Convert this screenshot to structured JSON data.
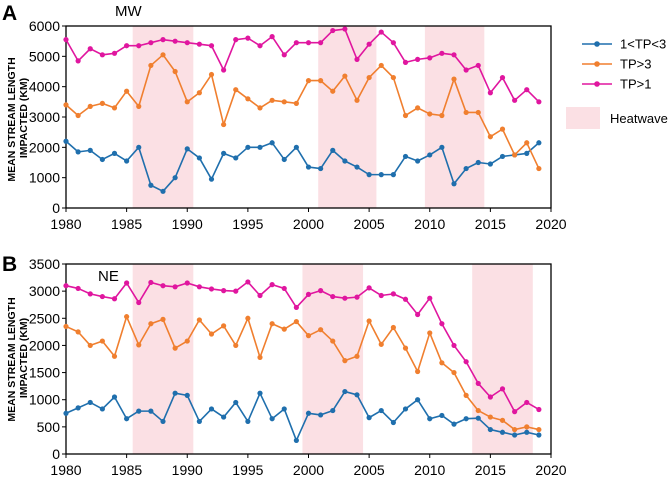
{
  "chart_data": [
    {
      "panel": "A",
      "title": "MW",
      "type": "line",
      "xlabel": "",
      "ylabel": "MEAN STREAM LENGTH IMPACTED (KM)",
      "xlim": [
        1980,
        2020
      ],
      "ylim": [
        0,
        6000
      ],
      "xticks": [
        "1980",
        "1985",
        "1990",
        "1995",
        "2000",
        "2005",
        "2010",
        "2015",
        "2020"
      ],
      "yticks": [
        "0",
        "1000",
        "2000",
        "3000",
        "4000",
        "5000",
        "6000"
      ],
      "heatwaves": [
        [
          1985.5,
          1990.5
        ],
        [
          2000.8,
          2005.6
        ],
        [
          2009.6,
          2014.5
        ]
      ],
      "x": [
        1980,
        1981,
        1982,
        1983,
        1984,
        1985,
        1986,
        1987,
        1988,
        1989,
        1990,
        1991,
        1992,
        1993,
        1994,
        1995,
        1996,
        1997,
        1998,
        1999,
        2000,
        2001,
        2002,
        2003,
        2004,
        2005,
        2006,
        2007,
        2008,
        2009,
        2010,
        2011,
        2012,
        2013,
        2014,
        2015,
        2016,
        2017,
        2018,
        2019
      ],
      "series": [
        {
          "name": "1<TP<3",
          "color": "#1f6fad",
          "values": [
            2200,
            1850,
            1900,
            1600,
            1800,
            1550,
            2000,
            750,
            550,
            1000,
            1950,
            1650,
            950,
            1800,
            1650,
            2000,
            2000,
            2150,
            1600,
            2000,
            1350,
            1300,
            1900,
            1550,
            1350,
            1100,
            1100,
            1100,
            1700,
            1550,
            1750,
            2000,
            800,
            1300,
            1500,
            1450,
            1700,
            1750,
            1800,
            2150
          ]
        },
        {
          "name": "TP>3",
          "color": "#f07f2f",
          "values": [
            3400,
            3050,
            3350,
            3450,
            3300,
            3850,
            3350,
            4700,
            5050,
            4500,
            3500,
            3800,
            4400,
            2750,
            3900,
            3600,
            3300,
            3550,
            3500,
            3450,
            4200,
            4200,
            3850,
            4350,
            3550,
            4300,
            4700,
            4300,
            3050,
            3300,
            3100,
            3050,
            4250,
            3150,
            3150,
            2350,
            2600,
            1750,
            2150,
            1300
          ]
        },
        {
          "name": "TP>1",
          "color": "#e0169f",
          "values": [
            5550,
            4850,
            5250,
            5050,
            5100,
            5350,
            5350,
            5450,
            5550,
            5500,
            5450,
            5400,
            5350,
            4550,
            5550,
            5600,
            5350,
            5650,
            5050,
            5450,
            5450,
            5450,
            5850,
            5900,
            4900,
            5400,
            5800,
            5450,
            4800,
            4900,
            4950,
            5100,
            5050,
            4550,
            4700,
            3800,
            4300,
            3550,
            3900,
            3500
          ]
        }
      ]
    },
    {
      "panel": "B",
      "title": "NE",
      "type": "line",
      "xlabel": "",
      "ylabel": "MEAN STREAM LENGTH IMPACTED (KM)",
      "xlim": [
        1980,
        2020
      ],
      "ylim": [
        0,
        3500
      ],
      "xticks": [
        "1980",
        "1985",
        "1990",
        "1995",
        "2000",
        "2005",
        "2010",
        "2015",
        "2020"
      ],
      "yticks": [
        "0",
        "500",
        "1000",
        "1500",
        "2000",
        "2500",
        "3000",
        "3500"
      ],
      "heatwaves": [
        [
          1985.5,
          1990.5
        ],
        [
          1999.5,
          2004.5
        ],
        [
          2013.5,
          2018.5
        ]
      ],
      "x": [
        1980,
        1981,
        1982,
        1983,
        1984,
        1985,
        1986,
        1987,
        1988,
        1989,
        1990,
        1991,
        1992,
        1993,
        1994,
        1995,
        1996,
        1997,
        1998,
        1999,
        2000,
        2001,
        2002,
        2003,
        2004,
        2005,
        2006,
        2007,
        2008,
        2009,
        2010,
        2011,
        2012,
        2013,
        2014,
        2015,
        2016,
        2017,
        2018,
        2019
      ],
      "series": [
        {
          "name": "1<TP<3",
          "color": "#1f6fad",
          "values": [
            750,
            850,
            950,
            830,
            1050,
            650,
            790,
            790,
            600,
            1120,
            1080,
            600,
            830,
            680,
            950,
            600,
            1120,
            650,
            830,
            250,
            750,
            720,
            800,
            1150,
            1090,
            670,
            800,
            580,
            830,
            1000,
            650,
            710,
            550,
            650,
            660,
            450,
            400,
            350,
            400,
            350
          ]
        },
        {
          "name": "TP>3",
          "color": "#f07f2f",
          "values": [
            2350,
            2250,
            2000,
            2080,
            1800,
            2530,
            2010,
            2400,
            2480,
            1950,
            2080,
            2470,
            2210,
            2360,
            2000,
            2500,
            1780,
            2400,
            2300,
            2440,
            2180,
            2290,
            2080,
            1720,
            1800,
            2450,
            2020,
            2330,
            1950,
            1520,
            2230,
            1680,
            1500,
            1080,
            800,
            680,
            620,
            450,
            500,
            450
          ]
        },
        {
          "name": "TP>1",
          "color": "#e0169f",
          "values": [
            3100,
            3050,
            2950,
            2900,
            2860,
            3150,
            2790,
            3160,
            3100,
            3080,
            3150,
            3080,
            3040,
            3010,
            3000,
            3170,
            2920,
            3120,
            3050,
            2700,
            2940,
            3010,
            2900,
            2870,
            2890,
            3060,
            2920,
            2950,
            2850,
            2570,
            2870,
            2400,
            2000,
            1700,
            1300,
            1050,
            1200,
            780,
            950,
            820
          ]
        }
      ]
    }
  ],
  "legend": {
    "items": [
      {
        "label": "1<TP<3",
        "color": "#1f6fad"
      },
      {
        "label": "TP>3",
        "color": "#f07f2f"
      },
      {
        "label": "TP>1",
        "color": "#e0169f"
      }
    ],
    "heatwave_label": "Heatwave",
    "heatwave_color": "#fbe0e4"
  },
  "colors": {
    "axis": "#000000",
    "gridline": "#d9d9d9"
  }
}
